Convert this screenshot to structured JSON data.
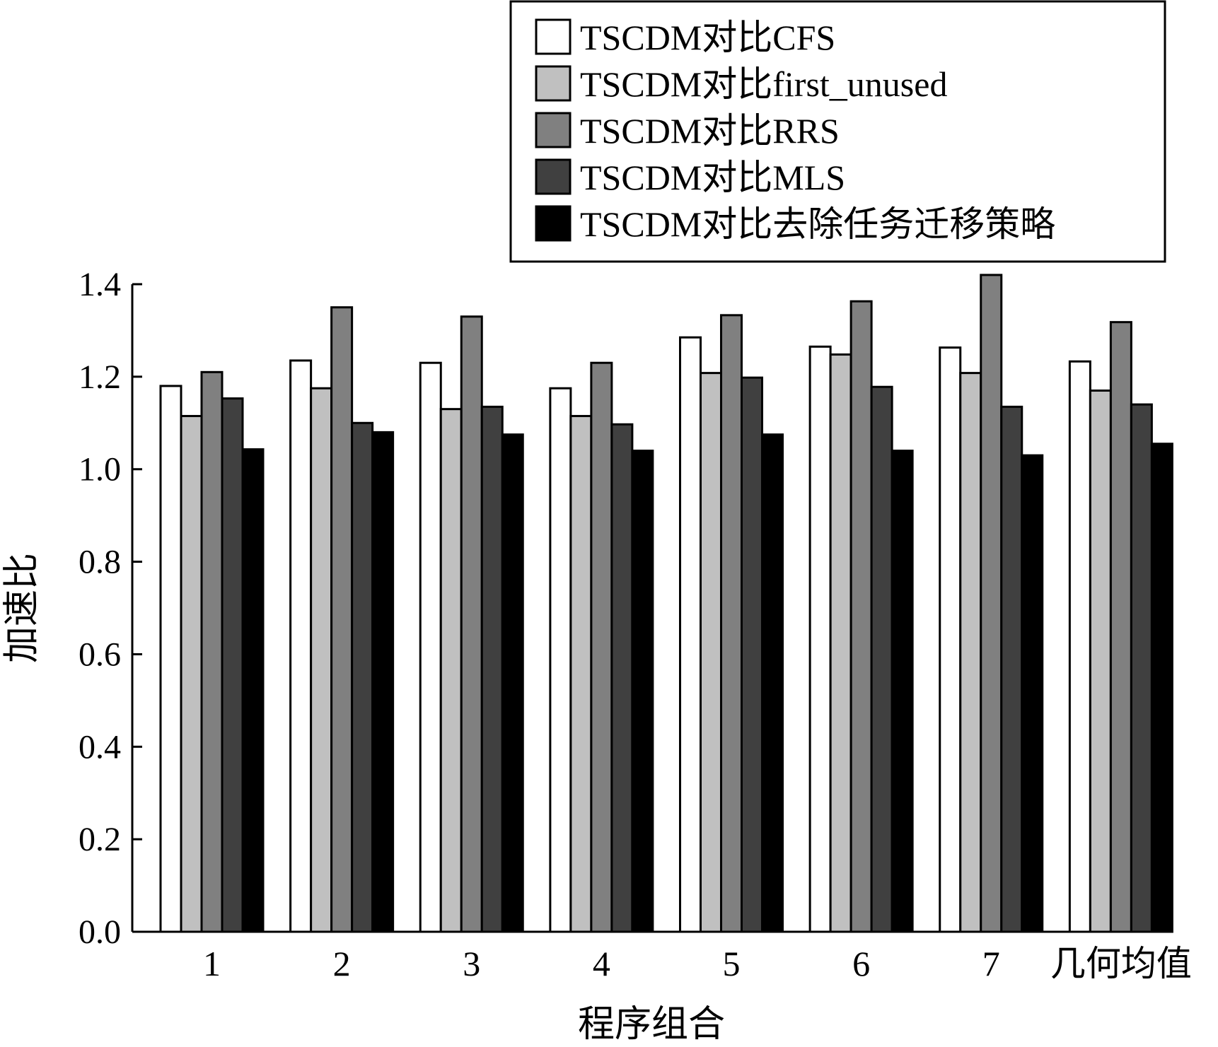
{
  "chart_data": {
    "type": "bar",
    "xlabel": "程序组合",
    "ylabel": "加速比",
    "ylim": [
      0,
      1.4
    ],
    "yticks": [
      "0.0",
      "0.2",
      "0.4",
      "0.6",
      "0.8",
      "1.0",
      "1.2",
      "1.4"
    ],
    "grid": false,
    "legend_position": "top-right",
    "categories": [
      "1",
      "2",
      "3",
      "4",
      "5",
      "6",
      "7",
      "几何均值"
    ],
    "series": [
      {
        "name": "TSCDM对比CFS",
        "color": "#ffffff",
        "values": [
          1.18,
          1.235,
          1.23,
          1.175,
          1.285,
          1.265,
          1.263,
          1.233
        ]
      },
      {
        "name": "TSCDM对比first_unused",
        "color": "#c0c0c0",
        "values": [
          1.115,
          1.175,
          1.13,
          1.115,
          1.208,
          1.248,
          1.208,
          1.17
        ]
      },
      {
        "name": "TSCDM对比RRS",
        "color": "#808080",
        "values": [
          1.21,
          1.35,
          1.33,
          1.23,
          1.333,
          1.363,
          1.42,
          1.318
        ]
      },
      {
        "name": "TSCDM对比MLS",
        "color": "#404040",
        "values": [
          1.153,
          1.1,
          1.135,
          1.097,
          1.198,
          1.178,
          1.135,
          1.14
        ]
      },
      {
        "name": "TSCDM对比去除任务迁移策略",
        "color": "#000000",
        "values": [
          1.043,
          1.08,
          1.075,
          1.04,
          1.075,
          1.04,
          1.03,
          1.055
        ]
      }
    ]
  }
}
